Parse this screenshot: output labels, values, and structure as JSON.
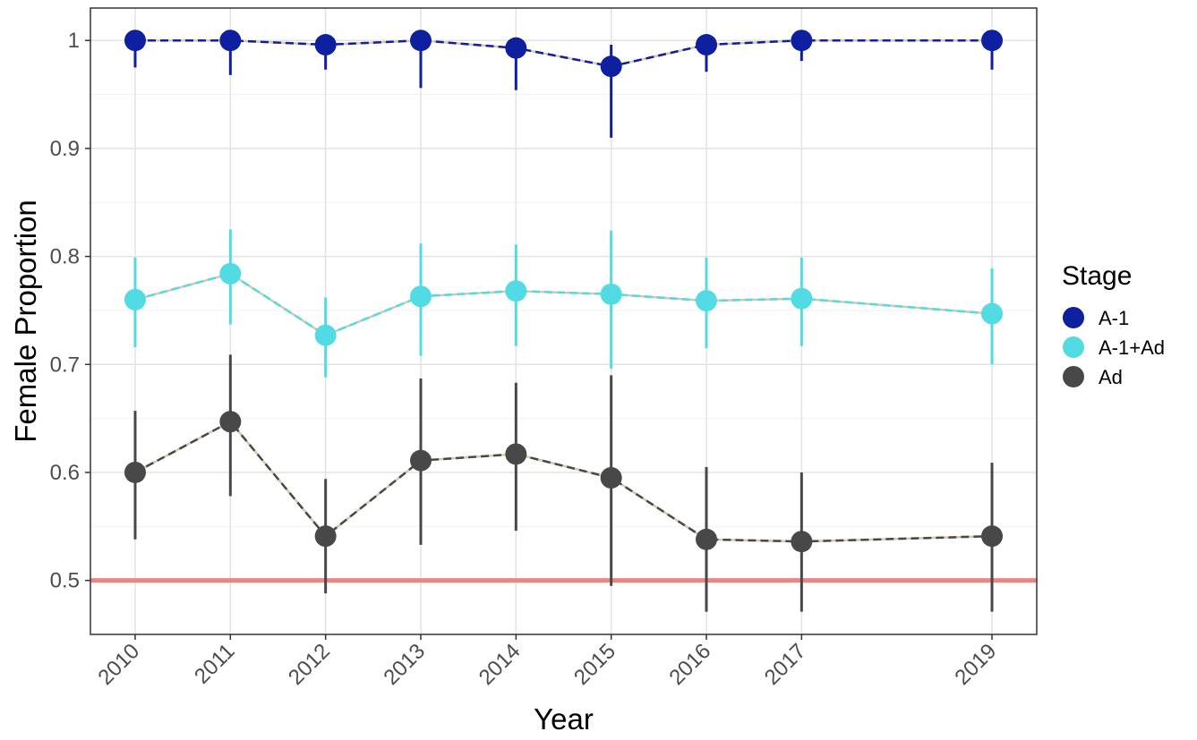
{
  "chart_data": {
    "type": "line",
    "title": "",
    "xlabel": "Year",
    "ylabel": "Female Proportion",
    "x": [
      2010,
      2011,
      2012,
      2013,
      2014,
      2015,
      2016,
      2017,
      2019
    ],
    "x_tick_labels": [
      "2010",
      "2011",
      "2012",
      "2013",
      "2014",
      "2015",
      "2016",
      "2017",
      "2019"
    ],
    "xlim": [
      2009.53,
      2019.47
    ],
    "ylim": [
      0.45,
      1.03
    ],
    "y_ticks": [
      0.5,
      0.6,
      0.7,
      0.8,
      0.9,
      1.0
    ],
    "y_tick_labels": [
      "0.5",
      "0.6",
      "0.7",
      "0.8",
      "0.9",
      "1"
    ],
    "grid": true,
    "legend": {
      "title": "Stage",
      "placement": "right"
    },
    "reference_line": {
      "y": 0.5,
      "color": "#ee8585"
    },
    "series": [
      {
        "name": "A-1",
        "color": "#0e1fa0",
        "values": [
          1.0,
          1.0,
          0.996,
          1.0,
          0.993,
          0.976,
          0.996,
          1.0,
          1.0
        ],
        "lower": [
          0.975,
          0.968,
          0.973,
          0.956,
          0.954,
          0.91,
          0.971,
          0.981,
          0.973
        ],
        "upper": [
          1.0,
          1.0,
          1.0,
          1.0,
          1.0,
          0.996,
          1.0,
          1.0,
          1.0
        ]
      },
      {
        "name": "A-1+Ad",
        "color": "#52dbe3",
        "values": [
          0.76,
          0.784,
          0.727,
          0.763,
          0.768,
          0.765,
          0.759,
          0.761,
          0.747
        ],
        "lower": [
          0.716,
          0.737,
          0.688,
          0.708,
          0.717,
          0.696,
          0.715,
          0.717,
          0.7
        ],
        "upper": [
          0.799,
          0.825,
          0.762,
          0.812,
          0.811,
          0.824,
          0.799,
          0.799,
          0.789
        ]
      },
      {
        "name": "Ad",
        "color": "#484848",
        "values": [
          0.6,
          0.647,
          0.541,
          0.611,
          0.617,
          0.595,
          0.538,
          0.536,
          0.541
        ],
        "lower": [
          0.538,
          0.578,
          0.488,
          0.533,
          0.546,
          0.495,
          0.471,
          0.471,
          0.471
        ],
        "upper": [
          0.657,
          0.709,
          0.594,
          0.687,
          0.683,
          0.69,
          0.605,
          0.6,
          0.609
        ]
      }
    ]
  }
}
